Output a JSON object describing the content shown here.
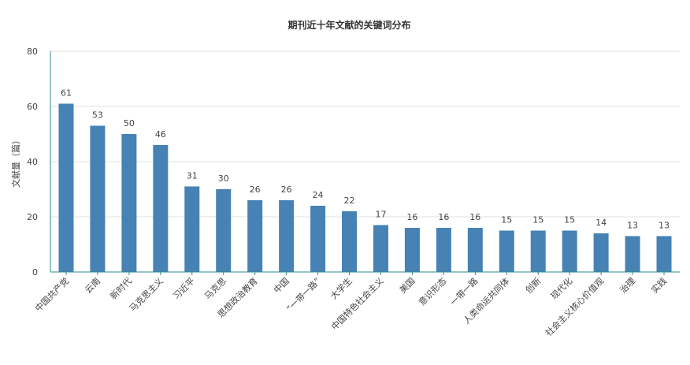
{
  "chart_data": {
    "type": "bar",
    "title": "期刊近十年文献的关键词分布",
    "xlabel": "",
    "ylabel": "文献量（篇）",
    "ylim": [
      0,
      80
    ],
    "yticks": [
      0,
      20,
      40,
      60,
      80
    ],
    "grid": true,
    "legend": "none",
    "categories": [
      "中国共产党",
      "云南",
      "新时代",
      "马克思主义",
      "习近平",
      "马克思",
      "思想政治教育",
      "中国",
      "“一带一路”",
      "大学生",
      "中国特色社会主义",
      "美国",
      "意识形态",
      "一带一路",
      "人类命运共同体",
      "创新",
      "现代化",
      "社会主义核心价值观",
      "治理",
      "实践"
    ],
    "values": [
      61,
      53,
      50,
      46,
      31,
      30,
      26,
      26,
      24,
      22,
      17,
      16,
      16,
      16,
      15,
      15,
      15,
      14,
      13,
      13
    ],
    "colors": {
      "bar": "#4682b4",
      "axis": "#2e8b8b",
      "grid": "#e2e2e2",
      "text": "#444444",
      "title": "#333333"
    }
  }
}
